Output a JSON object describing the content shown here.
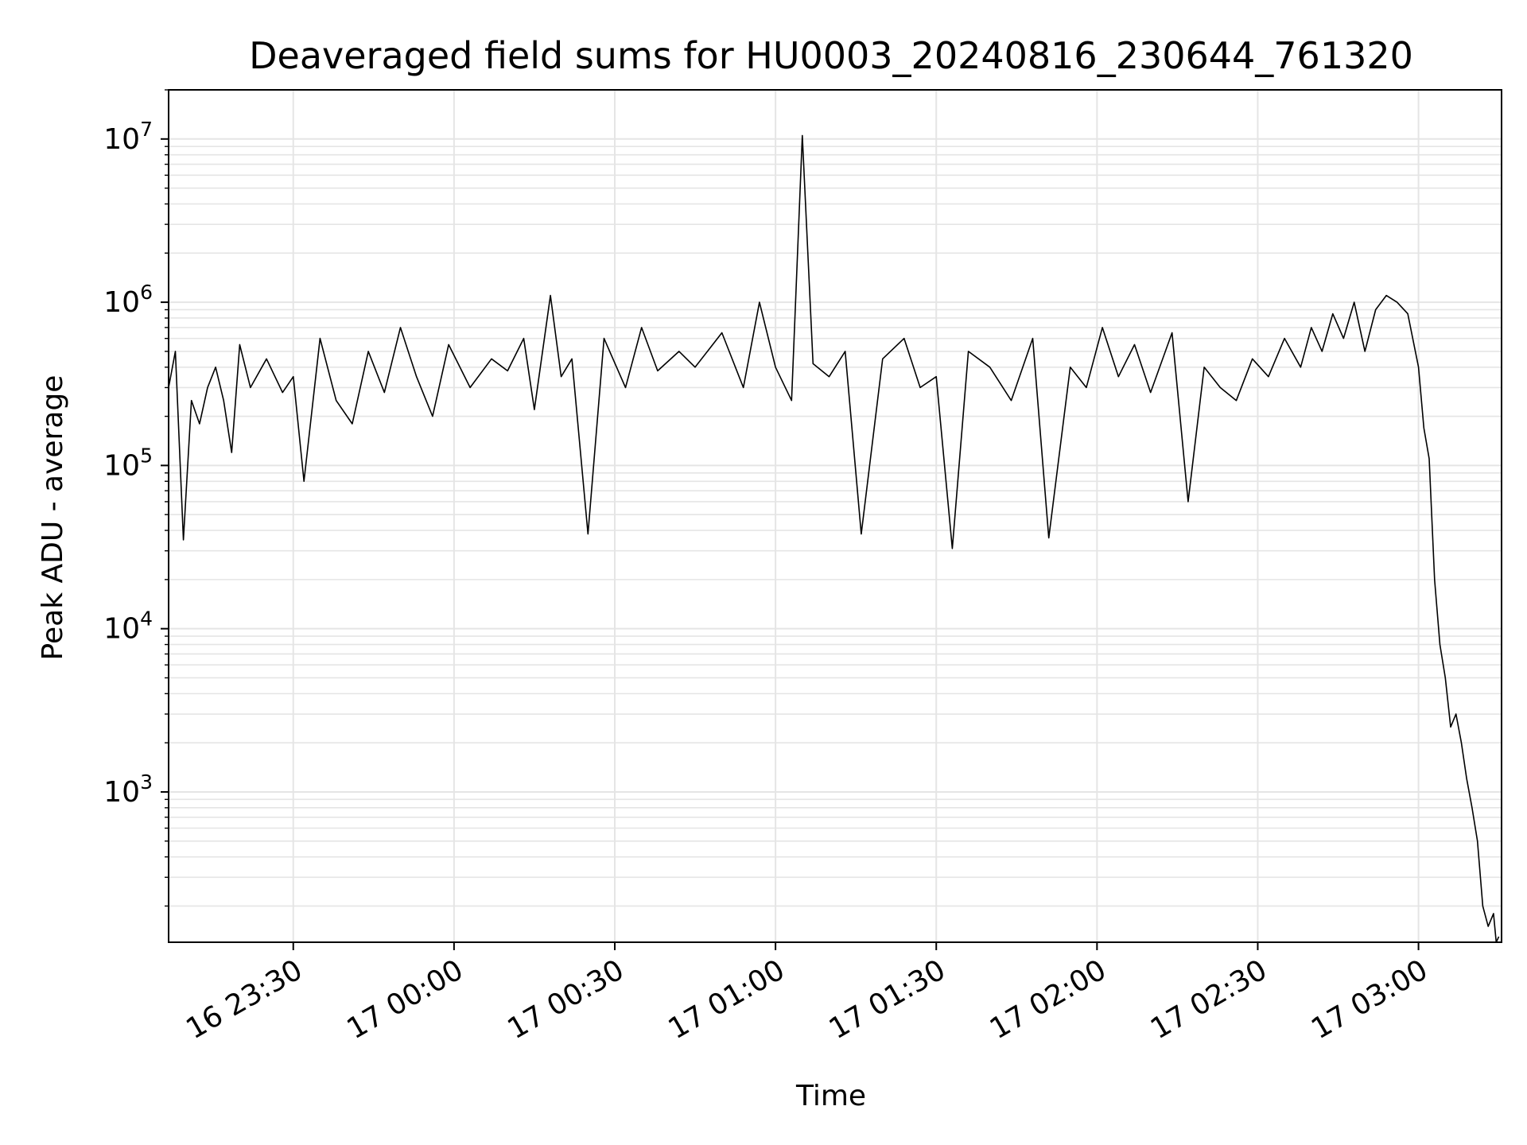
{
  "chart_data": {
    "type": "line",
    "title": "Deaveraged field sums for HU0003_20240816_230644_761320",
    "xlabel": "Time",
    "ylabel": "Peak ADU - average",
    "yscale": "log",
    "grid": true,
    "line_color": "#000000",
    "grid_color": "#e5e5e5",
    "xlim": [
      "2024-08-16 23:06:44",
      "2024-08-17 03:15:30"
    ],
    "ylim": [
      120,
      20000000
    ],
    "x_ticks": [
      {
        "t": "2024-08-16 23:30:00",
        "label": "16 23:30"
      },
      {
        "t": "2024-08-17 00:00:00",
        "label": "17 00:00"
      },
      {
        "t": "2024-08-17 00:30:00",
        "label": "17 00:30"
      },
      {
        "t": "2024-08-17 01:00:00",
        "label": "17 01:00"
      },
      {
        "t": "2024-08-17 01:30:00",
        "label": "17 01:30"
      },
      {
        "t": "2024-08-17 02:00:00",
        "label": "17 02:00"
      },
      {
        "t": "2024-08-17 02:30:00",
        "label": "17 02:30"
      },
      {
        "t": "2024-08-17 03:00:00",
        "label": "17 03:00"
      }
    ],
    "y_ticks": [
      {
        "v": 1000,
        "base": "10",
        "exp": "3"
      },
      {
        "v": 10000,
        "base": "10",
        "exp": "4"
      },
      {
        "v": 100000,
        "base": "10",
        "exp": "5"
      },
      {
        "v": 1000000,
        "base": "10",
        "exp": "6"
      },
      {
        "v": 10000000,
        "base": "10",
        "exp": "7"
      }
    ],
    "series": [
      {
        "x": [
          "2024-08-16 23:06:44",
          "2024-08-16 23:08:00",
          "2024-08-16 23:09:30",
          "2024-08-16 23:11:00",
          "2024-08-16 23:12:30",
          "2024-08-16 23:14:00",
          "2024-08-16 23:15:30",
          "2024-08-16 23:17:00",
          "2024-08-16 23:18:30",
          "2024-08-16 23:20:00",
          "2024-08-16 23:22:00",
          "2024-08-16 23:25:00",
          "2024-08-16 23:28:00",
          "2024-08-16 23:30:00",
          "2024-08-16 23:32:00",
          "2024-08-16 23:35:00",
          "2024-08-16 23:38:00",
          "2024-08-16 23:41:00",
          "2024-08-16 23:44:00",
          "2024-08-16 23:47:00",
          "2024-08-16 23:50:00",
          "2024-08-16 23:53:00",
          "2024-08-16 23:56:00",
          "2024-08-16 23:59:00",
          "2024-08-17 00:03:00",
          "2024-08-17 00:07:00",
          "2024-08-17 00:10:00",
          "2024-08-17 00:13:00",
          "2024-08-17 00:15:00",
          "2024-08-17 00:18:00",
          "2024-08-17 00:20:00",
          "2024-08-17 00:22:00",
          "2024-08-17 00:25:00",
          "2024-08-17 00:28:00",
          "2024-08-17 00:32:00",
          "2024-08-17 00:35:00",
          "2024-08-17 00:38:00",
          "2024-08-17 00:42:00",
          "2024-08-17 00:45:00",
          "2024-08-17 00:50:00",
          "2024-08-17 00:54:00",
          "2024-08-17 00:57:00",
          "2024-08-17 01:00:00",
          "2024-08-17 01:03:00",
          "2024-08-17 01:05:00",
          "2024-08-17 01:07:00",
          "2024-08-17 01:10:00",
          "2024-08-17 01:13:00",
          "2024-08-17 01:16:00",
          "2024-08-17 01:20:00",
          "2024-08-17 01:24:00",
          "2024-08-17 01:27:00",
          "2024-08-17 01:30:00",
          "2024-08-17 01:33:00",
          "2024-08-17 01:36:00",
          "2024-08-17 01:40:00",
          "2024-08-17 01:44:00",
          "2024-08-17 01:48:00",
          "2024-08-17 01:51:00",
          "2024-08-17 01:55:00",
          "2024-08-17 01:58:00",
          "2024-08-17 02:01:00",
          "2024-08-17 02:04:00",
          "2024-08-17 02:07:00",
          "2024-08-17 02:10:00",
          "2024-08-17 02:14:00",
          "2024-08-17 02:17:00",
          "2024-08-17 02:20:00",
          "2024-08-17 02:23:00",
          "2024-08-17 02:26:00",
          "2024-08-17 02:29:00",
          "2024-08-17 02:32:00",
          "2024-08-17 02:35:00",
          "2024-08-17 02:38:00",
          "2024-08-17 02:40:00",
          "2024-08-17 02:42:00",
          "2024-08-17 02:44:00",
          "2024-08-17 02:46:00",
          "2024-08-17 02:48:00",
          "2024-08-17 02:50:00",
          "2024-08-17 02:52:00",
          "2024-08-17 02:54:00",
          "2024-08-17 02:56:00",
          "2024-08-17 02:58:00",
          "2024-08-17 03:00:00",
          "2024-08-17 03:01:00",
          "2024-08-17 03:02:00",
          "2024-08-17 03:03:00",
          "2024-08-17 03:04:00",
          "2024-08-17 03:05:00",
          "2024-08-17 03:06:00",
          "2024-08-17 03:07:00",
          "2024-08-17 03:08:00",
          "2024-08-17 03:09:00",
          "2024-08-17 03:10:00",
          "2024-08-17 03:11:00",
          "2024-08-17 03:12:00",
          "2024-08-17 03:13:00",
          "2024-08-17 03:14:00",
          "2024-08-17 03:14:30",
          "2024-08-17 03:15:00"
        ],
        "y": [
          300000,
          500000,
          35000,
          250000,
          180000,
          300000,
          400000,
          250000,
          120000,
          550000,
          300000,
          450000,
          280000,
          350000,
          80000,
          600000,
          250000,
          180000,
          500000,
          280000,
          700000,
          350000,
          200000,
          550000,
          300000,
          450000,
          380000,
          600000,
          220000,
          1100000,
          350000,
          450000,
          38000,
          600000,
          300000,
          700000,
          380000,
          500000,
          400000,
          650000,
          300000,
          1000000,
          400000,
          250000,
          10500000,
          420000,
          350000,
          500000,
          38000,
          450000,
          600000,
          300000,
          350000,
          31000,
          500000,
          400000,
          250000,
          600000,
          36000,
          400000,
          300000,
          700000,
          350000,
          550000,
          280000,
          650000,
          60000,
          400000,
          300000,
          250000,
          450000,
          350000,
          600000,
          400000,
          700000,
          500000,
          850000,
          600000,
          1000000,
          500000,
          900000,
          1100000,
          1000000,
          850000,
          400000,
          170000,
          110000,
          20000,
          8000,
          5000,
          2500,
          3000,
          2000,
          1200,
          800,
          500,
          200,
          150,
          180,
          120,
          130
        ]
      }
    ]
  }
}
